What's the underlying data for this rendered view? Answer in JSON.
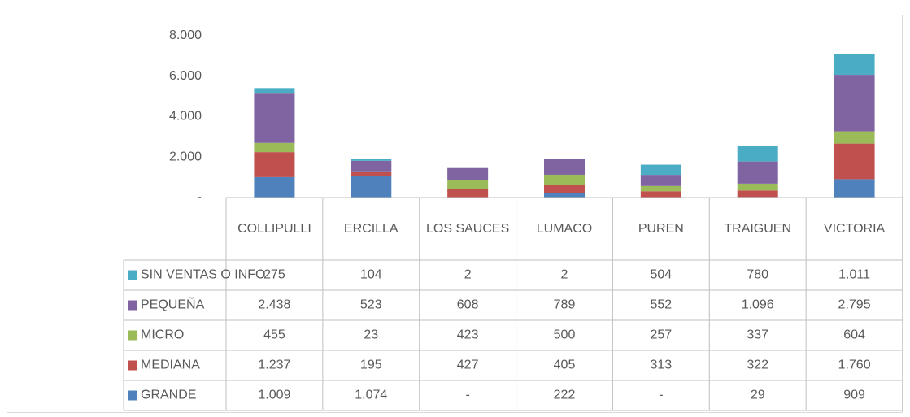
{
  "chart_data": {
    "type": "stacked-bar",
    "categories": [
      "COLLIPULLI",
      "ERCILLA",
      "LOS SAUCES",
      "LUMACO",
      "PUREN",
      "TRAIGUEN",
      "VICTORIA"
    ],
    "series": [
      {
        "name": "GRANDE",
        "color": "#4f81bd",
        "values": [
          1009,
          1074,
          0,
          222,
          0,
          29,
          909
        ],
        "value_labels": [
          "1.009",
          "1.074",
          "-",
          "222",
          "-",
          "29",
          "909"
        ]
      },
      {
        "name": "MEDIANA",
        "color": "#c0504d",
        "values": [
          1237,
          195,
          427,
          405,
          313,
          322,
          1760
        ],
        "value_labels": [
          "1.237",
          "195",
          "427",
          "405",
          "313",
          "322",
          "1.760"
        ]
      },
      {
        "name": "MICRO",
        "color": "#9bbb59",
        "values": [
          455,
          23,
          423,
          500,
          257,
          337,
          604
        ],
        "value_labels": [
          "455",
          "23",
          "423",
          "500",
          "257",
          "337",
          "604"
        ]
      },
      {
        "name": "PEQUEÑA",
        "color": "#8064a2",
        "values": [
          2438,
          523,
          608,
          789,
          552,
          1096,
          2795
        ],
        "value_labels": [
          "2.438",
          "523",
          "608",
          "789",
          "552",
          "1.096",
          "2.795"
        ]
      },
      {
        "name": "SIN VENTAS O INFO",
        "color": "#4bacc6",
        "values": [
          275,
          104,
          2,
          2,
          504,
          780,
          1011
        ],
        "value_labels": [
          "275",
          "104",
          "2",
          "2",
          "504",
          "780",
          "1.011"
        ]
      }
    ],
    "ylim": [
      0,
      8000
    ],
    "yticks": [
      {
        "value": 0,
        "label": "-"
      },
      {
        "value": 2000,
        "label": "2.000"
      },
      {
        "value": 4000,
        "label": "4.000"
      },
      {
        "value": 6000,
        "label": "6.000"
      },
      {
        "value": 8000,
        "label": "8.000"
      }
    ],
    "grid": false,
    "legend": "data-table"
  }
}
